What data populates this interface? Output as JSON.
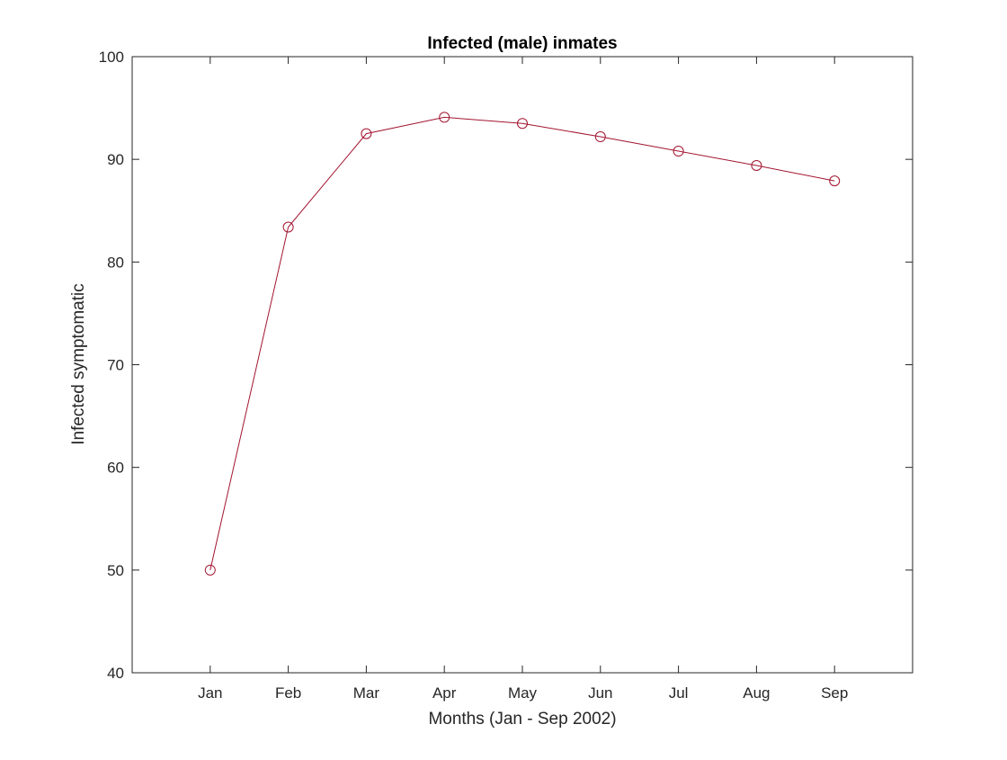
{
  "chart_data": {
    "type": "line",
    "title": "Infected (male) inmates",
    "xlabel": "Months (Jan - Sep 2002)",
    "ylabel": "Infected symptomatic",
    "categories": [
      "Jan",
      "Feb",
      "Mar",
      "Apr",
      "May",
      "Jun",
      "Jul",
      "Aug",
      "Sep"
    ],
    "series": [
      {
        "values": [
          50,
          83.4,
          92.5,
          94.1,
          93.5,
          92.2,
          90.8,
          89.4,
          87.9
        ],
        "color": "#a2142f",
        "marker": "circle"
      }
    ],
    "ylim": [
      40,
      100
    ],
    "yticks": [
      40,
      50,
      60,
      70,
      80,
      90,
      100
    ],
    "xlim_padding_categories": 1,
    "grid": false,
    "box": true
  }
}
